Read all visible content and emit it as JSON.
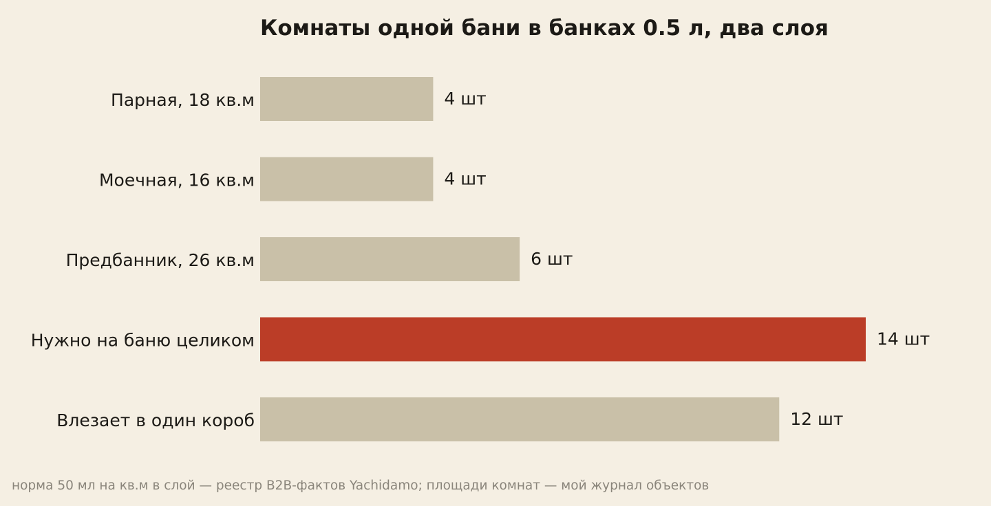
{
  "chart_data": {
    "type": "bar",
    "orientation": "horizontal",
    "title": "Комнаты одной бани в банках 0.5 л, два слоя",
    "categories": [
      "Парная, 18 кв.м",
      "Моечная, 16 кв.м",
      "Предбанник, 26 кв.м",
      "Нужно на баню целиком",
      "Влезает в один короб"
    ],
    "values": [
      4,
      4,
      6,
      14,
      12
    ],
    "value_labels": [
      "4 шт",
      "4 шт",
      "6 шт",
      "14 шт",
      "12 шт"
    ],
    "highlight_index": 3,
    "xlim": [
      0,
      14
    ],
    "grid": false,
    "colors": {
      "bar": "#c9c0a8",
      "highlight": "#bb3d27",
      "background": "#f5efe3",
      "text": "#1c1a16",
      "footnote": "#8a857b"
    }
  },
  "footnote": "норма 50 мл на кв.м в слой — реестр B2B-фактов Yachidamo; площади комнат — мой журнал объектов"
}
